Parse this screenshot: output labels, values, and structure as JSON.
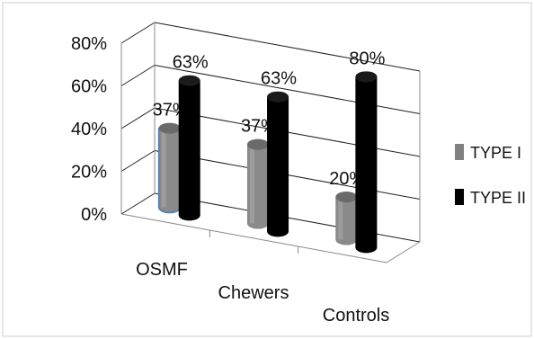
{
  "chart_data": {
    "type": "bar",
    "title": "",
    "xlabel": "",
    "ylabel": "",
    "categories": [
      "OSMF",
      "Chewers",
      "Controls"
    ],
    "series": [
      {
        "name": "TYPE I",
        "values": [
          37,
          37,
          20
        ],
        "color": "#808080"
      },
      {
        "name": "TYPE II",
        "values": [
          63,
          63,
          80
        ],
        "color": "#000000"
      }
    ],
    "data_labels": [
      [
        "37%",
        "63%"
      ],
      [
        "37%",
        "63%"
      ],
      [
        "20%",
        "80%"
      ]
    ],
    "y_ticks": [
      "0%",
      "20%",
      "40%",
      "60%",
      "80%"
    ],
    "ylim": [
      0,
      80
    ],
    "grid": true,
    "legend_position": "right",
    "style": "3d-cylinder"
  }
}
